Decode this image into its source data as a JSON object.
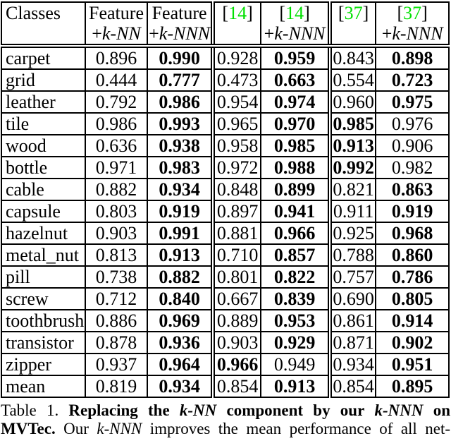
{
  "colors": {
    "citation_green": "#00E000",
    "text_black": "#000000",
    "background": "#ffffff"
  },
  "table": {
    "header": {
      "classes_label": "Classes",
      "columns": [
        {
          "type": "text",
          "line1": "Feature",
          "line2_prefix": "+",
          "line2_italic": "k-NN",
          "group_start": false
        },
        {
          "type": "text",
          "line1": "Feature",
          "line2_prefix": "+",
          "line2_italic": "k-NNN",
          "group_start": false
        },
        {
          "type": "cite",
          "line1": "14",
          "line2_prefix": "",
          "line2_italic": "",
          "group_start": true
        },
        {
          "type": "cite",
          "line1": "14",
          "line2_prefix": "+",
          "line2_italic": "k-NNN",
          "group_start": false
        },
        {
          "type": "cite",
          "line1": "37",
          "line2_prefix": "",
          "line2_italic": "",
          "group_start": true
        },
        {
          "type": "cite",
          "line1": "37",
          "line2_prefix": "+",
          "line2_italic": "k-NNN",
          "group_start": false
        }
      ]
    },
    "rows": [
      {
        "class": "carpet",
        "values": [
          "0.896",
          "0.990",
          "0.928",
          "0.959",
          "0.843",
          "0.898"
        ],
        "bold": [
          false,
          true,
          false,
          true,
          false,
          true
        ]
      },
      {
        "class": "grid",
        "values": [
          "0.444",
          "0.777",
          "0.473",
          "0.663",
          "0.554",
          "0.723"
        ],
        "bold": [
          false,
          true,
          false,
          true,
          false,
          true
        ]
      },
      {
        "class": "leather",
        "values": [
          "0.792",
          "0.986",
          "0.954",
          "0.974",
          "0.960",
          "0.975"
        ],
        "bold": [
          false,
          true,
          false,
          true,
          false,
          true
        ]
      },
      {
        "class": "tile",
        "values": [
          "0.986",
          "0.993",
          "0.965",
          "0.970",
          "0.985",
          "0.976"
        ],
        "bold": [
          false,
          true,
          false,
          true,
          true,
          false
        ]
      },
      {
        "class": "wood",
        "values": [
          "0.636",
          "0.938",
          "0.958",
          "0.985",
          "0.913",
          "0.906"
        ],
        "bold": [
          false,
          true,
          false,
          true,
          true,
          false
        ]
      },
      {
        "class": "bottle",
        "values": [
          "0.971",
          "0.983",
          "0.972",
          "0.988",
          "0.992",
          "0.982"
        ],
        "bold": [
          false,
          true,
          false,
          true,
          true,
          false
        ]
      },
      {
        "class": "cable",
        "values": [
          "0.882",
          "0.934",
          "0.848",
          "0.899",
          "0.821",
          "0.863"
        ],
        "bold": [
          false,
          true,
          false,
          true,
          false,
          true
        ]
      },
      {
        "class": "capsule",
        "values": [
          "0.803",
          "0.919",
          "0.897",
          "0.941",
          "0.911",
          "0.919"
        ],
        "bold": [
          false,
          true,
          false,
          true,
          false,
          true
        ]
      },
      {
        "class": "hazelnut",
        "values": [
          "0.903",
          "0.991",
          "0.881",
          "0.966",
          "0.925",
          "0.968"
        ],
        "bold": [
          false,
          true,
          false,
          true,
          false,
          true
        ]
      },
      {
        "class": "metal_nut",
        "values": [
          "0.813",
          "0.913",
          "0.710",
          "0.857",
          "0.788",
          "0.860"
        ],
        "bold": [
          false,
          true,
          false,
          true,
          false,
          true
        ]
      },
      {
        "class": "pill",
        "values": [
          "0.738",
          "0.882",
          "0.801",
          "0.822",
          "0.757",
          "0.786"
        ],
        "bold": [
          false,
          true,
          false,
          true,
          false,
          true
        ]
      },
      {
        "class": "screw",
        "values": [
          "0.712",
          "0.840",
          "0.667",
          "0.839",
          "0.690",
          "0.805"
        ],
        "bold": [
          false,
          true,
          false,
          true,
          false,
          true
        ]
      },
      {
        "class": "toothbrush",
        "values": [
          "0.886",
          "0.969",
          "0.889",
          "0.953",
          "0.861",
          "0.914"
        ],
        "bold": [
          false,
          true,
          false,
          true,
          false,
          true
        ]
      },
      {
        "class": "transistor",
        "values": [
          "0.878",
          "0.936",
          "0.903",
          "0.929",
          "0.871",
          "0.902"
        ],
        "bold": [
          false,
          true,
          false,
          true,
          false,
          true
        ]
      },
      {
        "class": "zipper",
        "values": [
          "0.937",
          "0.964",
          "0.966",
          "0.949",
          "0.934",
          "0.951"
        ],
        "bold": [
          false,
          true,
          true,
          false,
          false,
          true
        ]
      },
      {
        "class": "mean",
        "values": [
          "0.819",
          "0.934",
          "0.854",
          "0.913",
          "0.854",
          "0.895"
        ],
        "bold": [
          false,
          true,
          false,
          true,
          false,
          true
        ]
      }
    ]
  },
  "caption": {
    "lines": [
      [
        {
          "text": "Table 1.",
          "bold": false,
          "italic": false
        },
        {
          "text": "Replacing the",
          "bold": true,
          "italic": false
        },
        {
          "text": "k-NN",
          "bold": true,
          "italic": true
        },
        {
          "text": "component by our",
          "bold": true,
          "italic": false
        },
        {
          "text": "k-NNN",
          "bold": true,
          "italic": true
        },
        {
          "text": "on",
          "bold": true,
          "italic": false
        }
      ],
      [
        {
          "text": "MVTec.",
          "bold": true,
          "italic": false
        },
        {
          "text": "Our",
          "bold": false,
          "italic": false
        },
        {
          "text": "k-NNN",
          "bold": false,
          "italic": true
        },
        {
          "text": "improves the mean performance of all net-",
          "bold": false,
          "italic": false
        }
      ]
    ]
  }
}
